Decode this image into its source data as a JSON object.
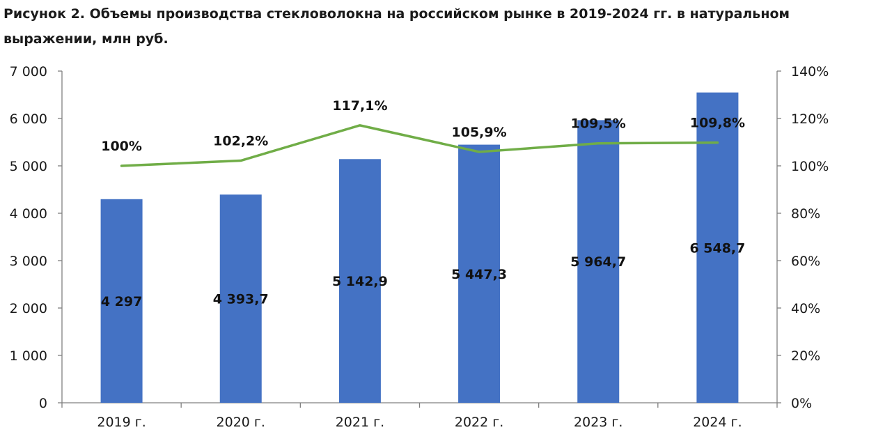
{
  "chart_data": {
    "type": "bar",
    "title": "Рисунок 2. Объемы производства стекловолокна на российском рынке в 2019-2024 гг. в натуральном выражении, млн руб.",
    "categories": [
      "2019 г.",
      "2020 г.",
      "2021 г.",
      "2022 г.",
      "2023 г.",
      "2024 г."
    ],
    "series": [
      {
        "type": "bar",
        "values": [
          4297,
          4393.7,
          5142.9,
          5447.3,
          5964.7,
          6548.7
        ],
        "labels": [
          "4 297",
          "4 393,7",
          "5 142,9",
          "5 447,3",
          "5 964,7",
          "6 548,7"
        ],
        "color": "#4472c4",
        "axis": "left"
      },
      {
        "type": "line",
        "values": [
          100,
          102.2,
          117.1,
          105.9,
          109.5,
          109.8
        ],
        "labels": [
          "100%",
          "102,2%",
          "117,1%",
          "105,9%",
          "109,5%",
          "109,8%"
        ],
        "color": "#70ad47",
        "axis": "right"
      }
    ],
    "ylim_left": [
      0,
      7000
    ],
    "yticks_left": [
      "0",
      "1 000",
      "2 000",
      "3 000",
      "4 000",
      "5 000",
      "6 000",
      "7 000"
    ],
    "ylim_right": [
      0,
      140
    ],
    "yticks_right": [
      "0%",
      "20%",
      "40%",
      "60%",
      "80%",
      "100%",
      "120%",
      "140%"
    ],
    "grid": false,
    "legend": "none"
  }
}
